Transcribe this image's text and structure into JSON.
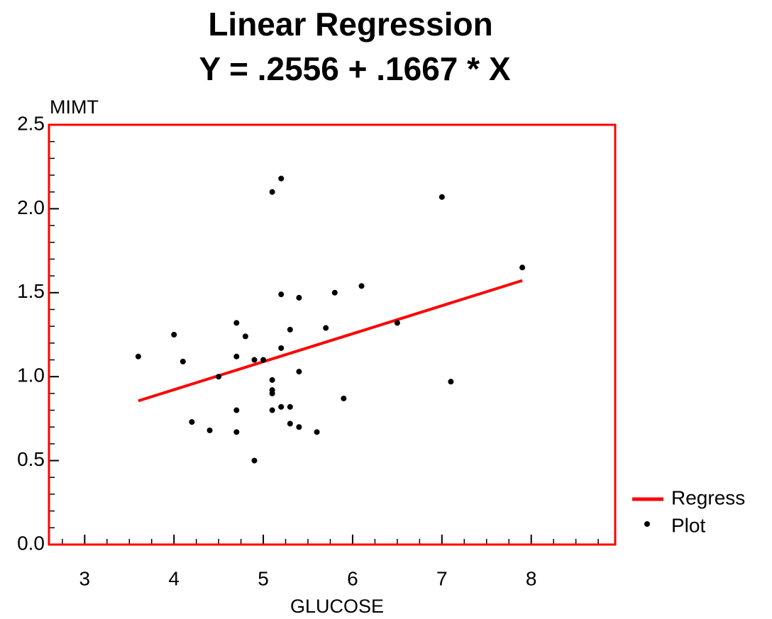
{
  "chart_data": {
    "type": "scatter",
    "title": "Linear Regression",
    "subtitle": "Y = .2556 + .1667 * X",
    "x_label": "GLUCOSE",
    "y_label": "MIMT",
    "xlim": [
      2.6,
      8.94
    ],
    "ylim": [
      0,
      2.5
    ],
    "xticks": [
      3,
      4,
      5,
      6,
      7,
      8
    ],
    "yticks": [
      {
        "value": 0,
        "label": "0.0"
      },
      {
        "value": 0.5,
        "label": "0.5"
      },
      {
        "value": 1,
        "label": "1.0"
      },
      {
        "value": 1.5,
        "label": "1.5"
      },
      {
        "value": 2,
        "label": "2.0"
      },
      {
        "value": 2.5,
        "label": "2.5"
      }
    ],
    "xminorticks": [
      2.75,
      3.25,
      3.5,
      3.75,
      4.25,
      4.5,
      4.75,
      5.25,
      5.5,
      5.75,
      6.25,
      6.5,
      6.75,
      7.25,
      7.5,
      7.75,
      8.25,
      8.5,
      8.75
    ],
    "yminorticks": [
      0.1,
      0.2,
      0.3,
      0.4,
      0.6,
      0.7,
      0.8,
      0.9,
      1.1,
      1.2,
      1.3,
      1.4,
      1.6,
      1.7,
      1.8,
      1.9,
      2.1,
      2.2,
      2.3,
      2.4
    ],
    "frame_color": "#ff0000",
    "legend": "right",
    "series": [
      {
        "name": "Regress",
        "color": "#ff0000",
        "style": "line",
        "x": [
          3.6,
          7.9
        ],
        "values": [
          0.8557,
          1.5725
        ]
      },
      {
        "name": "Plot",
        "color": "#000000",
        "style": "points",
        "x": [
          3.6,
          4.0,
          4.1,
          4.2,
          4.4,
          4.5,
          4.7,
          4.7,
          4.7,
          4.7,
          4.8,
          4.9,
          4.9,
          5.0,
          5.1,
          5.1,
          5.1,
          5.1,
          5.1,
          5.2,
          5.2,
          5.2,
          5.2,
          5.3,
          5.3,
          5.3,
          5.4,
          5.4,
          5.4,
          5.6,
          5.7,
          5.8,
          5.9,
          6.1,
          6.5,
          7.0,
          7.1,
          7.9
        ],
        "values": [
          1.12,
          1.25,
          1.09,
          0.73,
          0.68,
          1.0,
          1.32,
          1.12,
          0.8,
          0.67,
          1.24,
          1.1,
          0.5,
          1.1,
          2.1,
          0.98,
          0.92,
          0.9,
          0.8,
          2.18,
          1.49,
          1.17,
          0.82,
          1.28,
          0.82,
          0.72,
          1.47,
          1.03,
          0.7,
          0.67,
          1.29,
          1.5,
          0.87,
          1.54,
          1.32,
          2.07,
          0.97,
          1.65
        ]
      }
    ]
  }
}
